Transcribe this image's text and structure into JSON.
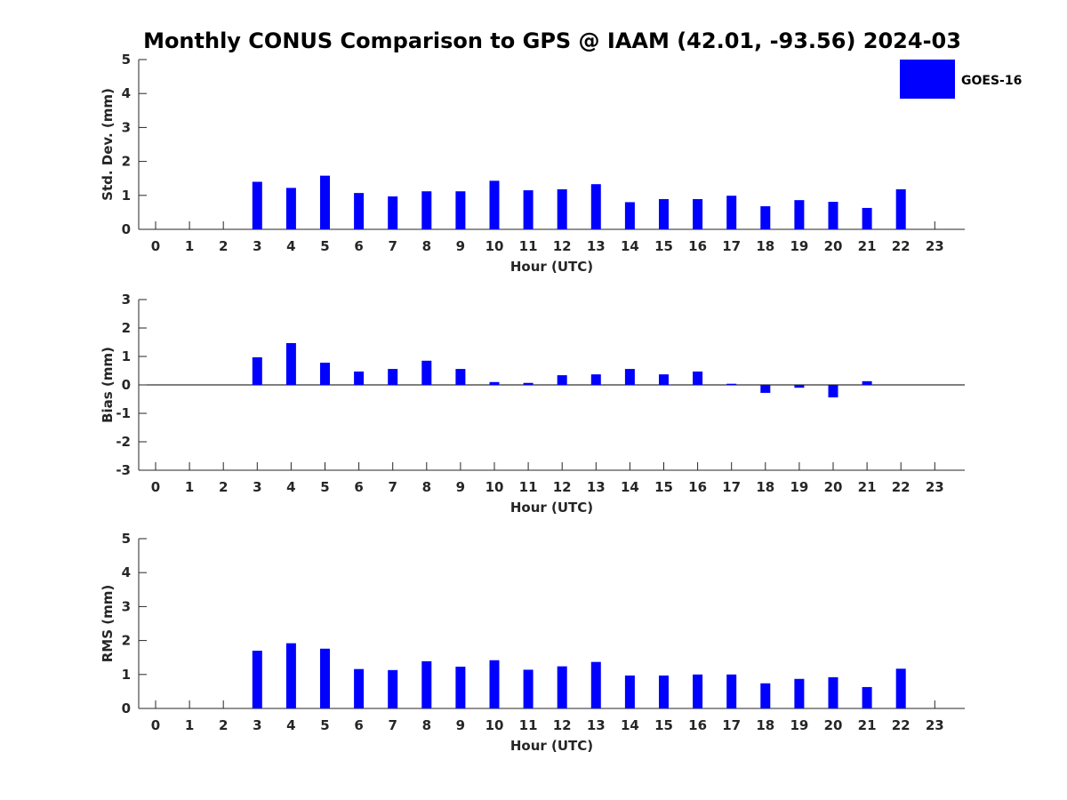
{
  "title": "Monthly CONUS Comparison to GPS @ IAAM (42.01, -93.56) 2024-03",
  "colors": {
    "bar": "#0000ff",
    "axis": "#262626",
    "text": "#000000"
  },
  "legend": {
    "label": "GOES-16",
    "placement": "top-right"
  },
  "chart_data": [
    {
      "type": "bar",
      "title": "Monthly CONUS Comparison to GPS @ IAAM (42.01, -93.56) 2024-03",
      "xlabel": "Hour (UTC)",
      "ylabel": "Std. Dev. (mm)",
      "ylim": [
        0,
        5
      ],
      "yticks": [
        0,
        1,
        2,
        3,
        4,
        5
      ],
      "categories": [
        "0",
        "1",
        "2",
        "3",
        "4",
        "5",
        "6",
        "7",
        "8",
        "9",
        "10",
        "11",
        "12",
        "13",
        "14",
        "15",
        "16",
        "17",
        "18",
        "19",
        "20",
        "21",
        "22",
        "23"
      ],
      "series": [
        {
          "name": "GOES-16",
          "values": [
            null,
            null,
            null,
            1.4,
            1.22,
            1.58,
            1.07,
            0.97,
            1.12,
            1.12,
            1.43,
            1.15,
            1.18,
            1.33,
            0.8,
            0.89,
            0.89,
            0.99,
            0.68,
            0.86,
            0.81,
            0.63,
            1.18,
            null
          ]
        }
      ]
    },
    {
      "type": "bar",
      "xlabel": "Hour (UTC)",
      "ylabel": "Bias (mm)",
      "ylim": [
        -3,
        3
      ],
      "yticks": [
        -3,
        -2,
        -1,
        0,
        1,
        2,
        3
      ],
      "zero_line": true,
      "categories": [
        "0",
        "1",
        "2",
        "3",
        "4",
        "5",
        "6",
        "7",
        "8",
        "9",
        "10",
        "11",
        "12",
        "13",
        "14",
        "15",
        "16",
        "17",
        "18",
        "19",
        "20",
        "21",
        "22",
        "23"
      ],
      "series": [
        {
          "name": "GOES-16",
          "values": [
            null,
            null,
            null,
            0.97,
            1.47,
            0.78,
            0.47,
            0.56,
            0.85,
            0.56,
            0.1,
            0.07,
            0.34,
            0.37,
            0.56,
            0.37,
            0.47,
            0.04,
            -0.28,
            -0.1,
            -0.44,
            0.13,
            null,
            null
          ]
        }
      ]
    },
    {
      "type": "bar",
      "xlabel": "Hour (UTC)",
      "ylabel": "RMS (mm)",
      "ylim": [
        0,
        5
      ],
      "yticks": [
        0,
        1,
        2,
        3,
        4,
        5
      ],
      "categories": [
        "0",
        "1",
        "2",
        "3",
        "4",
        "5",
        "6",
        "7",
        "8",
        "9",
        "10",
        "11",
        "12",
        "13",
        "14",
        "15",
        "16",
        "17",
        "18",
        "19",
        "20",
        "21",
        "22",
        "23"
      ],
      "series": [
        {
          "name": "GOES-16",
          "values": [
            null,
            null,
            null,
            1.7,
            1.92,
            1.76,
            1.16,
            1.13,
            1.39,
            1.23,
            1.42,
            1.14,
            1.24,
            1.37,
            0.97,
            0.97,
            1.0,
            1.0,
            0.74,
            0.87,
            0.92,
            0.63,
            1.17,
            null
          ]
        }
      ]
    }
  ]
}
